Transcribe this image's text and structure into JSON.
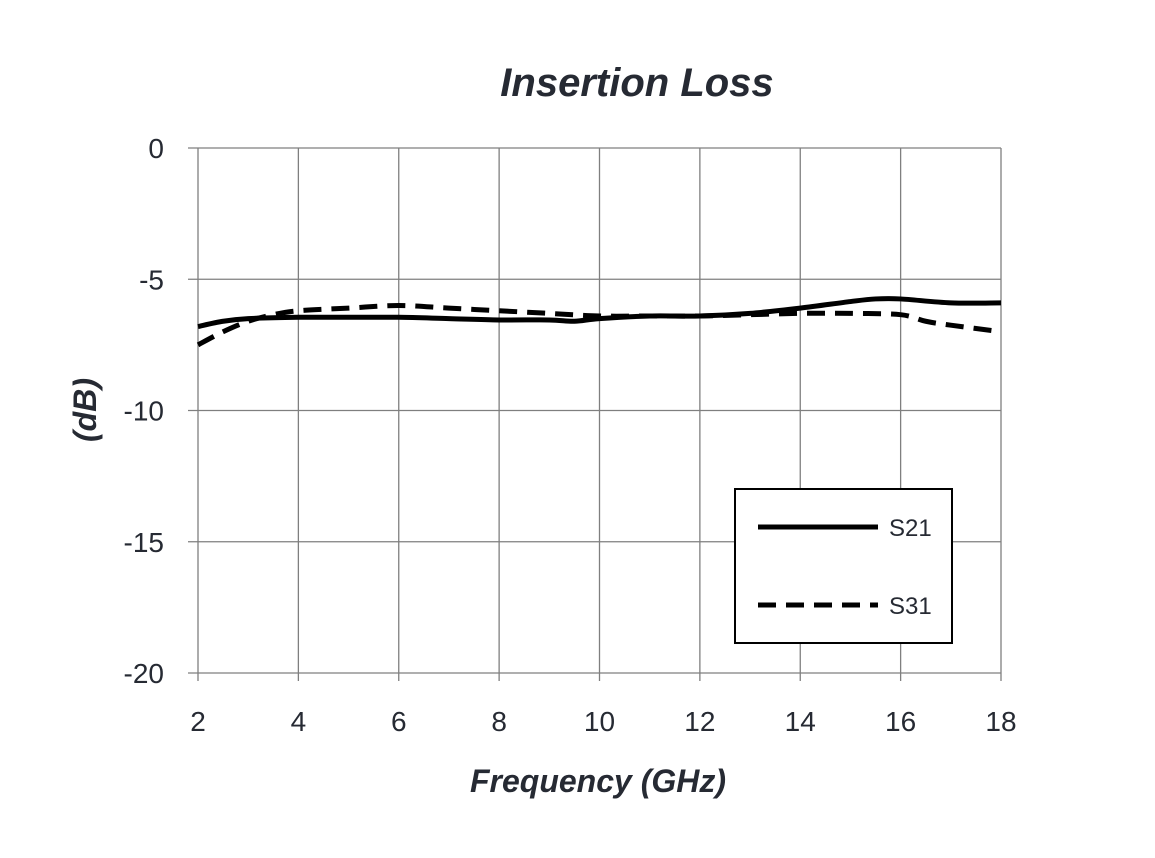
{
  "chart_data": {
    "type": "line",
    "title": "Insertion Loss",
    "xlabel": "Frequency (GHz)",
    "ylabel": "(dB)",
    "xlim": [
      2,
      18
    ],
    "ylim": [
      -20,
      0
    ],
    "xticks": [
      "2",
      "4",
      "6",
      "8",
      "10",
      "12",
      "14",
      "16",
      "18"
    ],
    "yticks": [
      "0",
      "-5",
      "-10",
      "-15",
      "-20"
    ],
    "grid": true,
    "legend_position": "bottom-right",
    "series": [
      {
        "name": "S21",
        "style": "solid",
        "color": "#000000",
        "x": [
          2,
          2.5,
          3,
          4,
          5,
          6,
          7,
          8,
          9,
          9.5,
          10,
          11,
          12,
          13,
          14,
          15,
          15.5,
          16,
          17,
          18
        ],
        "y": [
          -6.8,
          -6.6,
          -6.5,
          -6.45,
          -6.45,
          -6.45,
          -6.5,
          -6.55,
          -6.55,
          -6.6,
          -6.5,
          -6.4,
          -6.4,
          -6.3,
          -6.1,
          -5.85,
          -5.75,
          -5.75,
          -5.9,
          -5.9
        ]
      },
      {
        "name": "S31",
        "style": "dashed",
        "color": "#000000",
        "x": [
          2,
          2.5,
          3,
          3.5,
          4,
          5,
          6,
          7,
          8,
          9,
          10,
          11,
          12,
          13,
          14,
          15,
          16,
          16.5,
          17,
          18
        ],
        "y": [
          -7.5,
          -7.0,
          -6.6,
          -6.35,
          -6.2,
          -6.1,
          -6.0,
          -6.1,
          -6.2,
          -6.3,
          -6.4,
          -6.4,
          -6.4,
          -6.35,
          -6.3,
          -6.3,
          -6.35,
          -6.6,
          -6.75,
          -7.0
        ]
      }
    ]
  }
}
